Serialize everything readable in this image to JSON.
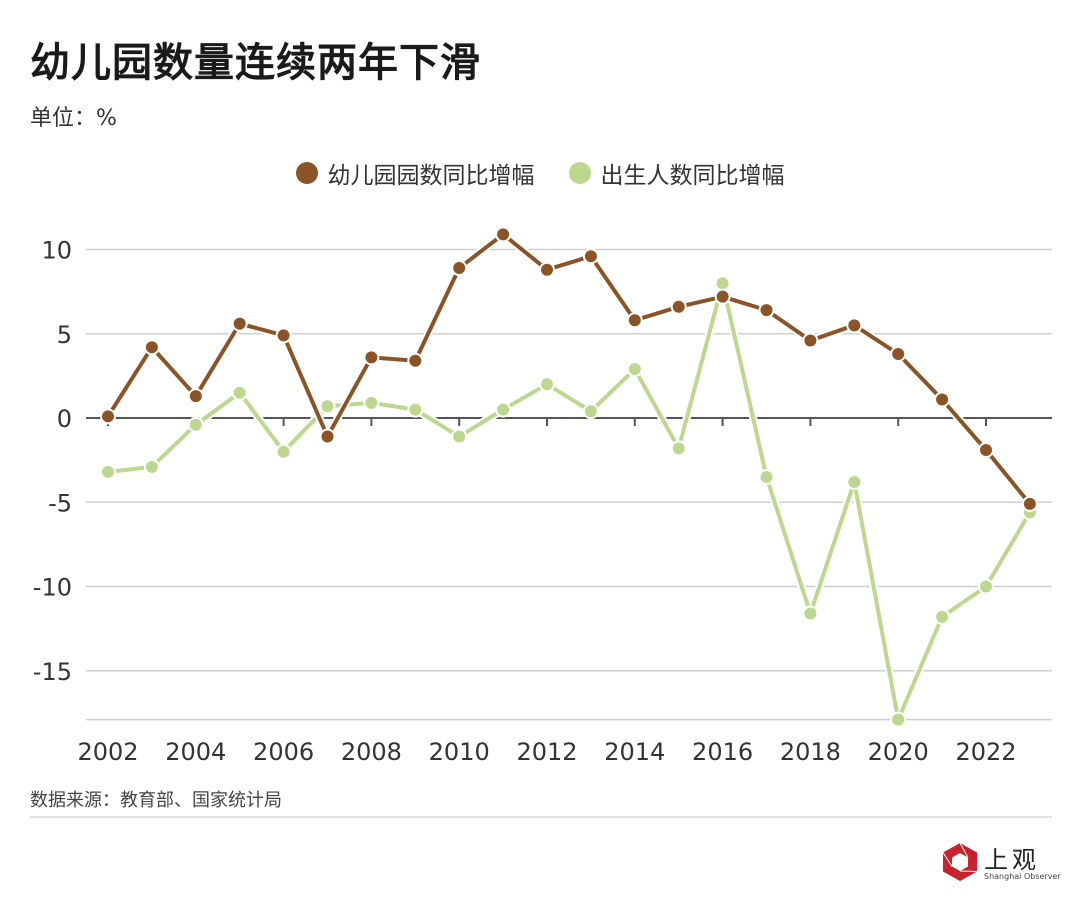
{
  "title": "幼儿园数量连续两年下滑",
  "unit_label": "单位：%",
  "source": "数据来源：教育部、国家统计局",
  "logo": {
    "cn": "上观",
    "en": "Shanghai Observer",
    "color": "#c8232c"
  },
  "chart_data": {
    "type": "line",
    "title": "幼儿园数量连续两年下滑",
    "ylabel": "%",
    "xlabel": "",
    "x": [
      2002,
      2003,
      2004,
      2005,
      2006,
      2007,
      2008,
      2009,
      2010,
      2011,
      2012,
      2013,
      2014,
      2015,
      2016,
      2017,
      2018,
      2019,
      2020,
      2021,
      2022,
      2023
    ],
    "x_ticks": [
      "2002",
      "2004",
      "2006",
      "2008",
      "2010",
      "2012",
      "2014",
      "2016",
      "2018",
      "2020",
      "2022"
    ],
    "y_ticks": [
      "10",
      "5",
      "0",
      "-5",
      "-10",
      "-15"
    ],
    "ylim": [
      -17.9,
      12
    ],
    "grid": true,
    "legend_position": "top-center",
    "series": [
      {
        "name": "幼儿园园数同比增幅",
        "color": "#8b5426",
        "values": [
          0.1,
          4.2,
          1.3,
          5.6,
          4.9,
          -1.1,
          3.6,
          3.4,
          8.9,
          10.9,
          8.8,
          9.6,
          5.8,
          6.6,
          7.2,
          6.4,
          4.6,
          5.5,
          3.8,
          1.1,
          -1.9,
          -5.1
        ]
      },
      {
        "name": "出生人数同比增幅",
        "color": "#bcd88f",
        "values": [
          -3.2,
          -2.9,
          -0.4,
          1.5,
          -2.0,
          0.7,
          0.9,
          0.5,
          -1.1,
          0.5,
          2.0,
          0.4,
          2.9,
          -1.8,
          8.0,
          -3.5,
          -11.6,
          -3.8,
          -17.9,
          -11.8,
          -10.0,
          -5.6
        ]
      }
    ]
  }
}
